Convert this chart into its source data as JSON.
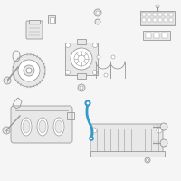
{
  "background_color": "#f5f5f5",
  "line_color": "#999999",
  "fill_color": "#e8e8e8",
  "highlight_color": "#3399cc",
  "figsize": [
    2.0,
    2.0
  ],
  "dpi": 100
}
